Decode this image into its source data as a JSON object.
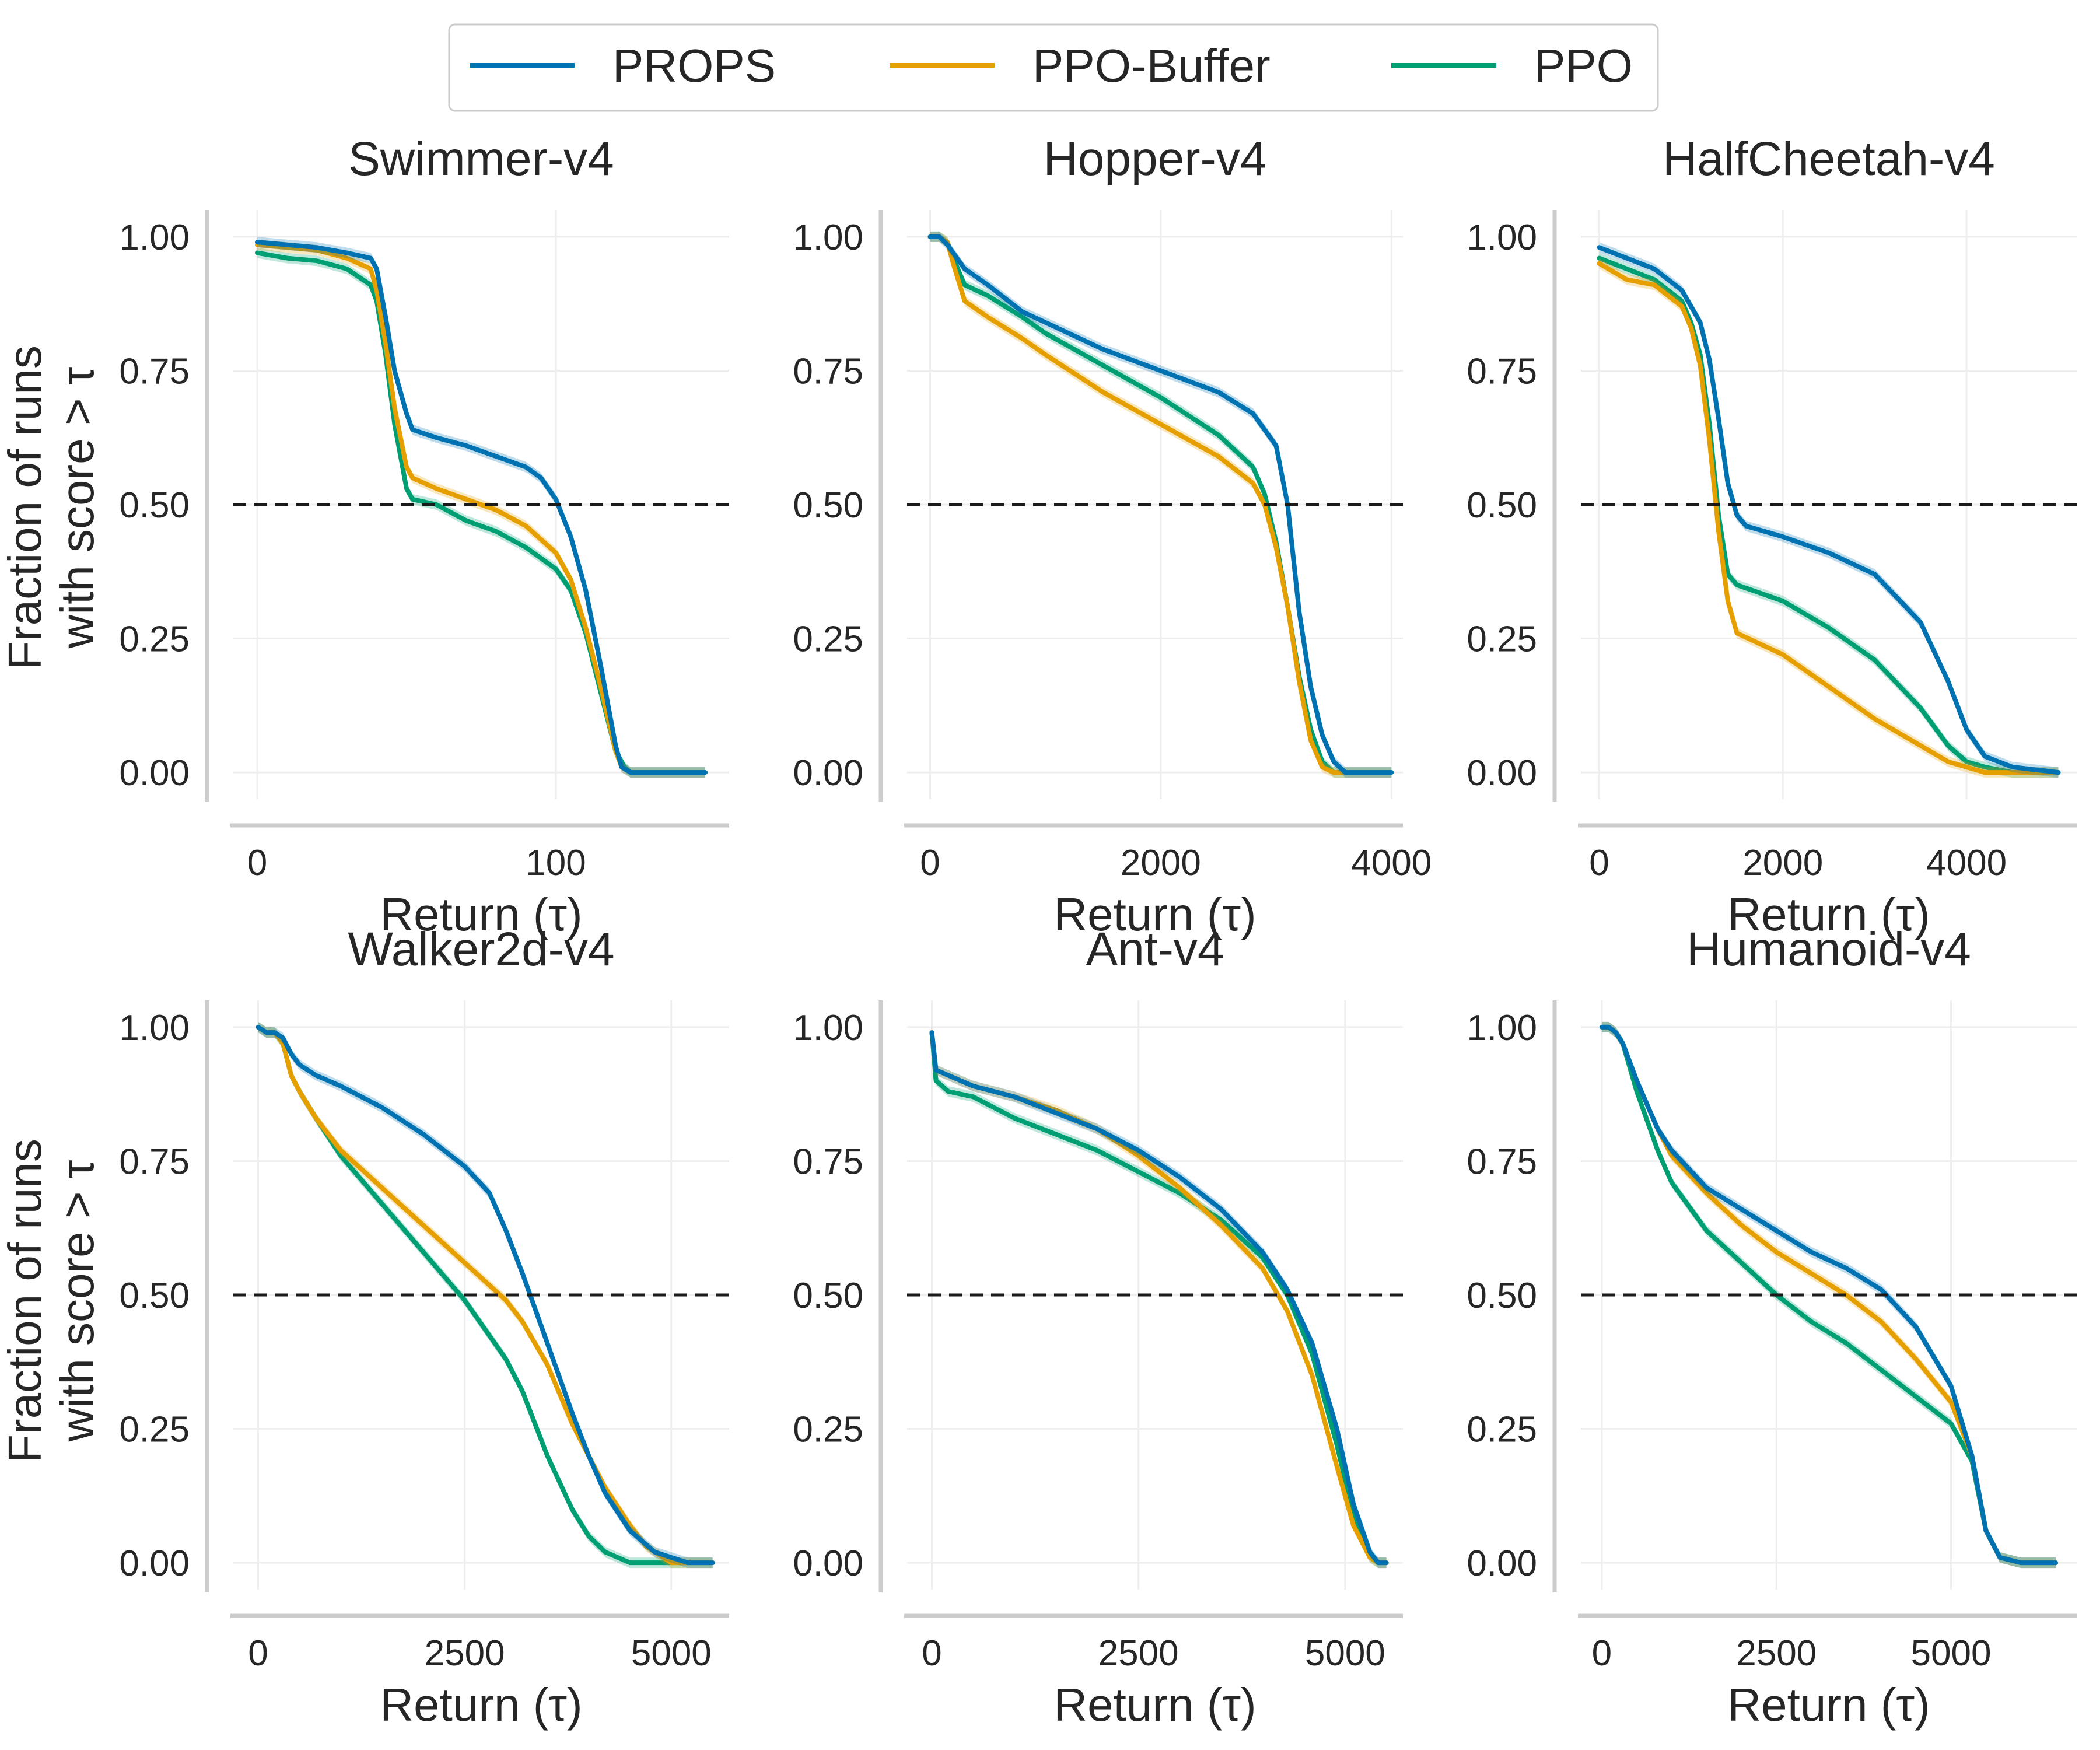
{
  "legend": [
    {
      "name": "PROPS",
      "color": "#0072b2"
    },
    {
      "name": "PPO-Buffer",
      "color": "#e69f00"
    },
    {
      "name": "PPO",
      "color": "#009e73"
    }
  ],
  "ylabel_line1": "Fraction of runs",
  "ylabel_line2": "with score > τ",
  "xlabel": "Return (τ)",
  "chart_data": [
    {
      "type": "line",
      "title": "Swimmer-v4",
      "xlim": [
        -8,
        158
      ],
      "ylim": [
        -0.05,
        1.05
      ],
      "xticks": [
        0,
        100
      ],
      "xtick_labels": [
        "0",
        "100"
      ],
      "yticks": [
        0,
        0.25,
        0.5,
        0.75,
        1.0
      ],
      "ytick_labels": [
        "0.00",
        "0.25",
        "0.50",
        "0.75",
        "1.00"
      ],
      "ref_y": 0.5,
      "xlabel": "Return (τ)",
      "series": [
        {
          "name": "PROPS",
          "x": [
            0,
            10,
            20,
            30,
            38,
            40,
            43,
            46,
            50,
            52,
            60,
            70,
            80,
            90,
            95,
            100,
            105,
            110,
            115,
            120,
            122,
            125,
            130,
            150
          ],
          "y": [
            0.99,
            0.985,
            0.98,
            0.97,
            0.96,
            0.94,
            0.85,
            0.75,
            0.67,
            0.64,
            0.625,
            0.61,
            0.59,
            0.57,
            0.55,
            0.51,
            0.44,
            0.34,
            0.2,
            0.05,
            0.01,
            0.0,
            0.0,
            0.0
          ]
        },
        {
          "name": "PPO-Buffer",
          "x": [
            0,
            10,
            20,
            30,
            38,
            40,
            43,
            46,
            50,
            52,
            60,
            70,
            80,
            90,
            100,
            105,
            110,
            115,
            120,
            122,
            125,
            130,
            150
          ],
          "y": [
            0.985,
            0.98,
            0.975,
            0.96,
            0.94,
            0.9,
            0.8,
            0.68,
            0.57,
            0.55,
            0.53,
            0.51,
            0.49,
            0.46,
            0.41,
            0.36,
            0.27,
            0.16,
            0.04,
            0.01,
            0.0,
            0.0,
            0.0
          ]
        },
        {
          "name": "PPO",
          "x": [
            0,
            10,
            20,
            30,
            38,
            40,
            43,
            46,
            50,
            52,
            60,
            70,
            80,
            90,
            100,
            105,
            110,
            115,
            120,
            123,
            125,
            130,
            150
          ],
          "y": [
            0.97,
            0.96,
            0.955,
            0.94,
            0.91,
            0.88,
            0.78,
            0.65,
            0.53,
            0.51,
            0.5,
            0.47,
            0.45,
            0.42,
            0.38,
            0.34,
            0.26,
            0.15,
            0.04,
            0.01,
            0.0,
            0.0,
            0.0
          ]
        }
      ]
    },
    {
      "type": "line",
      "title": "Hopper-v4",
      "xlim": [
        -200,
        4100
      ],
      "ylim": [
        -0.05,
        1.05
      ],
      "xticks": [
        0,
        2000,
        4000
      ],
      "xtick_labels": [
        "0",
        "2000",
        "4000"
      ],
      "yticks": [
        0,
        0.25,
        0.5,
        0.75,
        1.0
      ],
      "ytick_labels": [
        "0.00",
        "0.25",
        "0.50",
        "0.75",
        "1.00"
      ],
      "ref_y": 0.5,
      "xlabel": "Return (τ)",
      "series": [
        {
          "name": "PROPS",
          "x": [
            0,
            80,
            150,
            200,
            300,
            500,
            800,
            1000,
            1500,
            2000,
            2500,
            2800,
            3000,
            3100,
            3200,
            3300,
            3400,
            3500,
            3600,
            3700,
            4000
          ],
          "y": [
            1.0,
            1.0,
            0.985,
            0.97,
            0.94,
            0.91,
            0.86,
            0.84,
            0.79,
            0.75,
            0.71,
            0.67,
            0.61,
            0.5,
            0.3,
            0.16,
            0.07,
            0.02,
            0.0,
            0.0,
            0.0
          ]
        },
        {
          "name": "PPO-Buffer",
          "x": [
            0,
            80,
            150,
            200,
            300,
            500,
            800,
            1000,
            1500,
            2000,
            2500,
            2800,
            2900,
            3000,
            3100,
            3200,
            3300,
            3400,
            3500,
            4000
          ],
          "y": [
            1.0,
            1.0,
            0.99,
            0.95,
            0.88,
            0.85,
            0.81,
            0.78,
            0.71,
            0.65,
            0.59,
            0.54,
            0.5,
            0.42,
            0.31,
            0.17,
            0.06,
            0.01,
            0.0,
            0.0
          ]
        },
        {
          "name": "PPO",
          "x": [
            0,
            80,
            150,
            200,
            300,
            500,
            800,
            1000,
            1500,
            2000,
            2500,
            2800,
            2900,
            3000,
            3100,
            3200,
            3300,
            3400,
            3500,
            3600,
            4000
          ],
          "y": [
            1.0,
            1.0,
            0.99,
            0.96,
            0.91,
            0.89,
            0.85,
            0.82,
            0.76,
            0.7,
            0.63,
            0.57,
            0.52,
            0.43,
            0.31,
            0.18,
            0.08,
            0.02,
            0.0,
            0.0,
            0.0
          ]
        }
      ]
    },
    {
      "type": "line",
      "title": "HalfCheetah-v4",
      "xlim": [
        -200,
        5200
      ],
      "ylim": [
        -0.05,
        1.05
      ],
      "xticks": [
        0,
        2000,
        4000
      ],
      "xtick_labels": [
        "0",
        "2000",
        "4000"
      ],
      "yticks": [
        0,
        0.25,
        0.5,
        0.75,
        1.0
      ],
      "ytick_labels": [
        "0.00",
        "0.25",
        "0.50",
        "0.75",
        "1.00"
      ],
      "ref_y": 0.5,
      "xlabel": "Return (τ)",
      "series": [
        {
          "name": "PROPS",
          "x": [
            0,
            300,
            600,
            900,
            1100,
            1200,
            1300,
            1400,
            1500,
            1600,
            2000,
            2500,
            3000,
            3500,
            3800,
            4000,
            4200,
            4500,
            5000
          ],
          "y": [
            0.98,
            0.96,
            0.94,
            0.9,
            0.84,
            0.77,
            0.66,
            0.54,
            0.48,
            0.46,
            0.44,
            0.41,
            0.37,
            0.28,
            0.17,
            0.08,
            0.03,
            0.01,
            0.0
          ]
        },
        {
          "name": "PPO-Buffer",
          "x": [
            0,
            300,
            600,
            900,
            1000,
            1100,
            1200,
            1300,
            1400,
            1500,
            2000,
            2500,
            3000,
            3500,
            3800,
            4000,
            4200,
            4500,
            5000
          ],
          "y": [
            0.95,
            0.92,
            0.91,
            0.87,
            0.83,
            0.76,
            0.62,
            0.45,
            0.32,
            0.26,
            0.22,
            0.16,
            0.1,
            0.05,
            0.02,
            0.01,
            0.0,
            0.0,
            0.0
          ]
        },
        {
          "name": "PPO",
          "x": [
            0,
            300,
            600,
            900,
            1000,
            1100,
            1200,
            1300,
            1400,
            1500,
            2000,
            2500,
            3000,
            3500,
            3800,
            4000,
            4200,
            4500,
            5000
          ],
          "y": [
            0.96,
            0.94,
            0.92,
            0.88,
            0.84,
            0.78,
            0.65,
            0.48,
            0.37,
            0.35,
            0.32,
            0.27,
            0.21,
            0.12,
            0.05,
            0.02,
            0.01,
            0.0,
            0.0
          ]
        }
      ]
    },
    {
      "type": "line",
      "title": "Walker2d-v4",
      "xlim": [
        -300,
        5700
      ],
      "ylim": [
        -0.05,
        1.05
      ],
      "xticks": [
        0,
        2500,
        5000
      ],
      "xtick_labels": [
        "0",
        "2500",
        "5000"
      ],
      "yticks": [
        0,
        0.25,
        0.5,
        0.75,
        1.0
      ],
      "ytick_labels": [
        "0.00",
        "0.25",
        "0.50",
        "0.75",
        "1.00"
      ],
      "ref_y": 0.5,
      "xlabel": "Return (τ)",
      "series": [
        {
          "name": "PROPS",
          "x": [
            0,
            100,
            200,
            300,
            400,
            500,
            700,
            1000,
            1500,
            2000,
            2500,
            2800,
            3000,
            3200,
            3500,
            3800,
            4000,
            4200,
            4500,
            4800,
            5000,
            5200,
            5500
          ],
          "y": [
            1.0,
            0.99,
            0.99,
            0.98,
            0.95,
            0.93,
            0.91,
            0.89,
            0.85,
            0.8,
            0.74,
            0.69,
            0.62,
            0.54,
            0.41,
            0.28,
            0.2,
            0.13,
            0.06,
            0.02,
            0.01,
            0.0,
            0.0
          ]
        },
        {
          "name": "PPO-Buffer",
          "x": [
            0,
            100,
            200,
            300,
            400,
            500,
            700,
            1000,
            1500,
            2000,
            2500,
            3000,
            3200,
            3500,
            3800,
            4000,
            4200,
            4500,
            4700,
            5000,
            5500
          ],
          "y": [
            1.0,
            0.99,
            0.99,
            0.97,
            0.91,
            0.88,
            0.83,
            0.77,
            0.7,
            0.63,
            0.56,
            0.49,
            0.45,
            0.37,
            0.26,
            0.2,
            0.14,
            0.07,
            0.03,
            0.0,
            0.0
          ]
        },
        {
          "name": "PPO",
          "x": [
            0,
            100,
            200,
            300,
            400,
            500,
            700,
            1000,
            1500,
            2000,
            2500,
            3000,
            3200,
            3500,
            3800,
            4000,
            4200,
            4500,
            4700,
            5000,
            5500
          ],
          "y": [
            1.0,
            0.99,
            0.99,
            0.97,
            0.91,
            0.88,
            0.83,
            0.76,
            0.67,
            0.58,
            0.49,
            0.38,
            0.32,
            0.2,
            0.1,
            0.05,
            0.02,
            0.0,
            0.0,
            0.0,
            0.0
          ]
        }
      ]
    },
    {
      "type": "line",
      "title": "Ant-v4",
      "xlim": [
        -300,
        5700
      ],
      "ylim": [
        -0.05,
        1.05
      ],
      "xticks": [
        0,
        2500,
        5000
      ],
      "xtick_labels": [
        "0",
        "2500",
        "5000"
      ],
      "yticks": [
        0,
        0.25,
        0.5,
        0.75,
        1.0
      ],
      "ytick_labels": [
        "0.00",
        "0.25",
        "0.50",
        "0.75",
        "1.00"
      ],
      "ref_y": 0.5,
      "xlabel": "Return (τ)",
      "series": [
        {
          "name": "PROPS",
          "x": [
            0,
            50,
            200,
            500,
            1000,
            1500,
            2000,
            2500,
            3000,
            3500,
            4000,
            4300,
            4600,
            4900,
            5100,
            5300,
            5400,
            5500
          ],
          "y": [
            0.99,
            0.92,
            0.91,
            0.89,
            0.87,
            0.84,
            0.81,
            0.77,
            0.72,
            0.66,
            0.58,
            0.51,
            0.41,
            0.25,
            0.11,
            0.02,
            0.0,
            0.0
          ]
        },
        {
          "name": "PPO-Buffer",
          "x": [
            0,
            50,
            200,
            500,
            1000,
            1500,
            2000,
            2500,
            3000,
            3500,
            4000,
            4300,
            4600,
            4900,
            5100,
            5300,
            5400,
            5500
          ],
          "y": [
            0.99,
            0.92,
            0.91,
            0.89,
            0.87,
            0.845,
            0.81,
            0.76,
            0.7,
            0.63,
            0.55,
            0.47,
            0.35,
            0.18,
            0.07,
            0.01,
            0.0,
            0.0
          ]
        },
        {
          "name": "PPO",
          "x": [
            0,
            50,
            200,
            500,
            1000,
            1500,
            2000,
            2500,
            3000,
            3500,
            4000,
            4300,
            4600,
            4900,
            5100,
            5300,
            5400,
            5500
          ],
          "y": [
            0.99,
            0.9,
            0.88,
            0.87,
            0.83,
            0.8,
            0.77,
            0.73,
            0.69,
            0.64,
            0.57,
            0.5,
            0.39,
            0.22,
            0.09,
            0.01,
            0.0,
            0.0
          ]
        }
      ]
    },
    {
      "type": "line",
      "title": "Humanoid-v4",
      "xlim": [
        -300,
        6800
      ],
      "ylim": [
        -0.05,
        1.05
      ],
      "xticks": [
        0,
        2500,
        5000
      ],
      "xtick_labels": [
        "0",
        "2500",
        "5000"
      ],
      "yticks": [
        0,
        0.25,
        0.5,
        0.75,
        1.0
      ],
      "ytick_labels": [
        "0.00",
        "0.25",
        "0.50",
        "0.75",
        "1.00"
      ],
      "ref_y": 0.5,
      "xlabel": "Return (τ)",
      "series": [
        {
          "name": "PROPS",
          "x": [
            0,
            100,
            200,
            300,
            500,
            800,
            1000,
            1500,
            2000,
            2500,
            3000,
            3500,
            4000,
            4500,
            5000,
            5300,
            5500,
            5700,
            6000,
            6500
          ],
          "y": [
            1.0,
            1.0,
            0.99,
            0.97,
            0.9,
            0.81,
            0.77,
            0.7,
            0.66,
            0.62,
            0.58,
            0.55,
            0.51,
            0.44,
            0.33,
            0.2,
            0.06,
            0.01,
            0.0,
            0.0
          ]
        },
        {
          "name": "PPO-Buffer",
          "x": [
            0,
            100,
            200,
            300,
            500,
            800,
            1000,
            1500,
            2000,
            2500,
            3000,
            3500,
            4000,
            4500,
            5000,
            5300,
            5500,
            5700,
            6000,
            6500
          ],
          "y": [
            1.0,
            1.0,
            0.99,
            0.97,
            0.9,
            0.81,
            0.76,
            0.69,
            0.63,
            0.58,
            0.54,
            0.5,
            0.45,
            0.38,
            0.3,
            0.2,
            0.06,
            0.01,
            0.0,
            0.0
          ]
        },
        {
          "name": "PPO",
          "x": [
            0,
            100,
            200,
            300,
            500,
            800,
            1000,
            1500,
            2000,
            2500,
            3000,
            3500,
            4000,
            4500,
            5000,
            5300,
            5500,
            5700,
            6000,
            6500
          ],
          "y": [
            1.0,
            1.0,
            0.99,
            0.97,
            0.88,
            0.77,
            0.71,
            0.62,
            0.56,
            0.5,
            0.45,
            0.41,
            0.36,
            0.31,
            0.26,
            0.19,
            0.06,
            0.01,
            0.0,
            0.0
          ]
        }
      ]
    }
  ]
}
